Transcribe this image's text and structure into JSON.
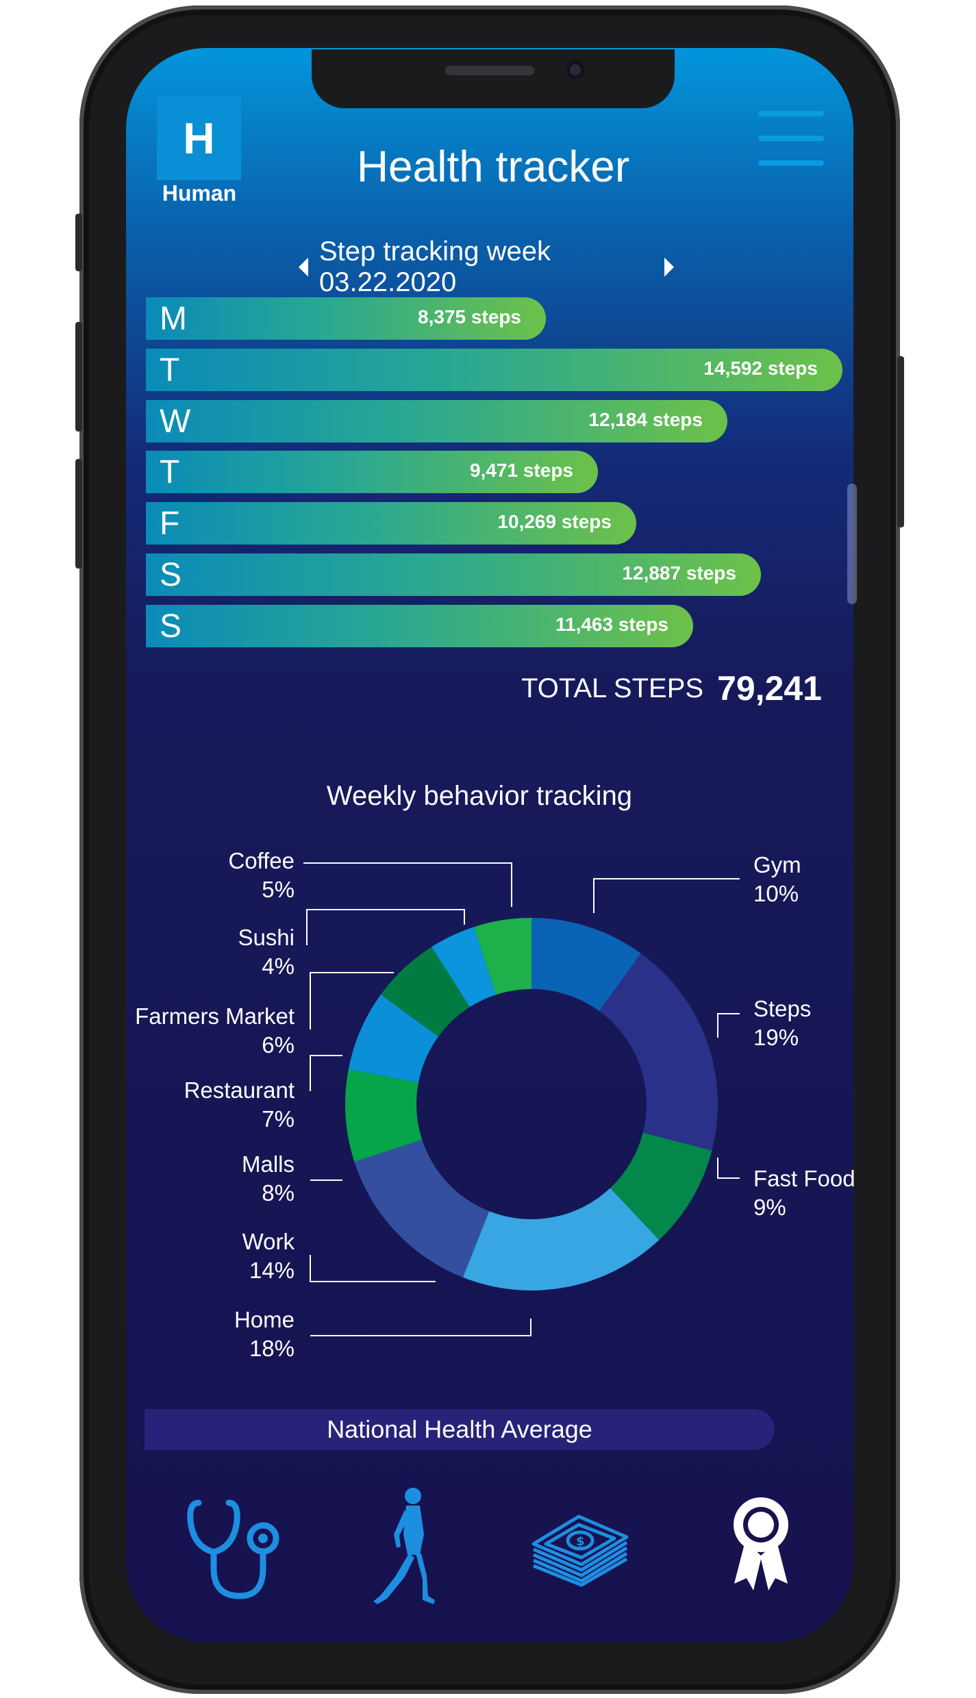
{
  "header": {
    "logo_letter": "H",
    "brand": "Human",
    "title": "Health tracker",
    "menu_icon": "hamburger-menu-icon"
  },
  "week": {
    "label": "Step tracking week 03.22.2020",
    "prev_icon": "caret-left-icon",
    "next_icon": "caret-right-icon"
  },
  "steps": {
    "days": [
      {
        "day": "M",
        "steps": 8375,
        "label": "8,375 steps"
      },
      {
        "day": "T",
        "steps": 14592,
        "label": "14,592 steps"
      },
      {
        "day": "W",
        "steps": 12184,
        "label": "12,184 steps"
      },
      {
        "day": "T",
        "steps": 9471,
        "label": "9,471 steps"
      },
      {
        "day": "F",
        "steps": 10269,
        "label": "10,269 steps"
      },
      {
        "day": "S",
        "steps": 12887,
        "label": "12,887 steps"
      },
      {
        "day": "S",
        "steps": 11463,
        "label": "11,463 steps"
      }
    ],
    "total_label": "TOTAL STEPS",
    "total_value": "79,241"
  },
  "behavior": {
    "title": "Weekly behavior tracking",
    "segments": [
      {
        "name": "Gym",
        "value": 10,
        "pct_label": "10%",
        "color": "#0a63b5"
      },
      {
        "name": "Steps",
        "value": 19,
        "pct_label": "19%",
        "color": "#2a3189"
      },
      {
        "name": "Fast Food",
        "value": 9,
        "pct_label": "9%",
        "color": "#03874a"
      },
      {
        "name": "Home",
        "value": 18,
        "pct_label": "18%",
        "color": "#37a6e2"
      },
      {
        "name": "Work",
        "value": 14,
        "pct_label": "14%",
        "color": "#344f9f"
      },
      {
        "name": "Malls",
        "value": 8,
        "pct_label": "8%",
        "color": "#06a549"
      },
      {
        "name": "Restaurant",
        "value": 7,
        "pct_label": "7%",
        "color": "#0a8fd8"
      },
      {
        "name": "Farmers Market",
        "value": 6,
        "pct_label": "6%",
        "color": "#007c43"
      },
      {
        "name": "Sushi",
        "value": 4,
        "pct_label": "4%",
        "color": "#0a95dd"
      },
      {
        "name": "Coffee",
        "value": 5,
        "pct_label": "5%",
        "color": "#1eb04a"
      }
    ]
  },
  "footer": {
    "national_average": "National Health Average"
  },
  "nav": [
    {
      "icon": "stethoscope-icon"
    },
    {
      "icon": "walking-person-icon"
    },
    {
      "icon": "money-stack-icon"
    },
    {
      "icon": "award-ribbon-icon"
    }
  ],
  "colors": {
    "accent": "#0a9be0",
    "bar_start": "#0a8bb8",
    "bar_end": "#6dc149",
    "icon_blue": "#1e8ee0",
    "nav_pill": "#262379"
  }
}
